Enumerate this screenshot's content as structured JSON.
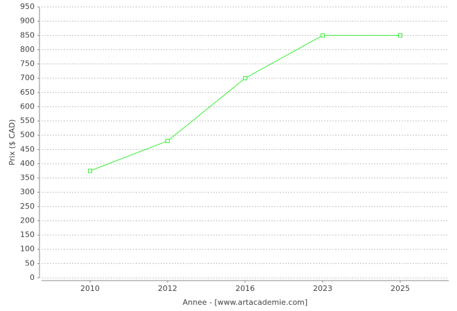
{
  "chart_data": {
    "type": "line",
    "x_label": "Annee - [www.artacademie.com]",
    "y_label": "Prix ($ CAD)",
    "categories": [
      "2010",
      "2012",
      "2016",
      "2023",
      "2025"
    ],
    "values": [
      375,
      480,
      700,
      850,
      850
    ],
    "color": "#33ee33",
    "ylim": [
      0,
      950
    ],
    "yticks": [
      0,
      50,
      100,
      150,
      200,
      250,
      300,
      350,
      400,
      450,
      500,
      550,
      600,
      650,
      700,
      750,
      800,
      850,
      900,
      950
    ],
    "grid": true
  }
}
